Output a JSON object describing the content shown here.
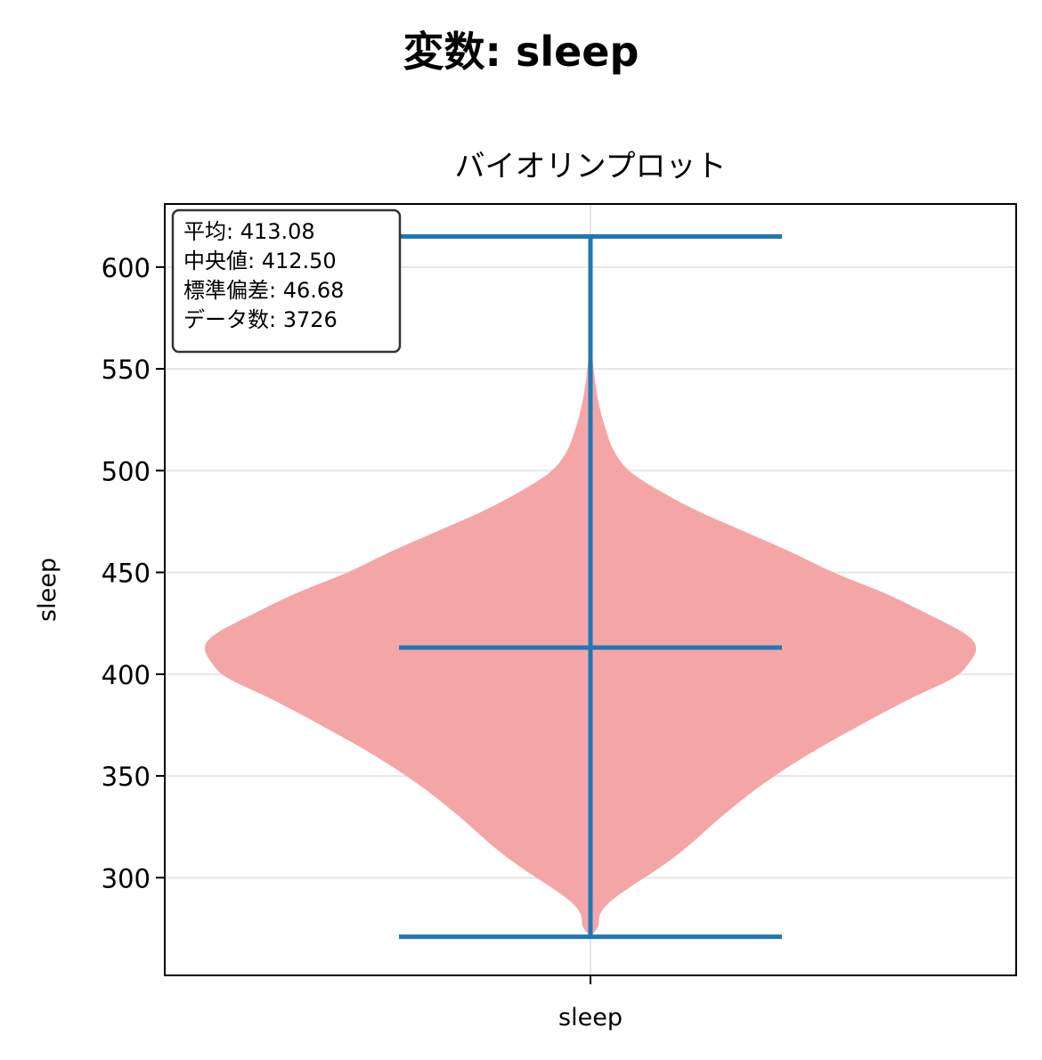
{
  "figure_title": "変数: sleep",
  "chart_data": {
    "type": "violin",
    "title": "バイオリンプロット",
    "xlabel": "",
    "ylabel": "sleep",
    "categories": [
      "sleep"
    ],
    "ylim": [
      252,
      631
    ],
    "yticks": [
      300,
      350,
      400,
      450,
      500,
      550,
      600
    ],
    "grid": true,
    "violin_color": "#f4a6a7",
    "line_color": "#1f77b4",
    "series": [
      {
        "name": "sleep",
        "min": 271,
        "max": 615,
        "mean": 413.08,
        "density": [
          [
            271,
            0.0
          ],
          [
            276,
            0.02
          ],
          [
            282,
            0.025
          ],
          [
            288,
            0.05
          ],
          [
            295,
            0.1
          ],
          [
            305,
            0.18
          ],
          [
            315,
            0.25
          ],
          [
            330,
            0.34
          ],
          [
            345,
            0.44
          ],
          [
            360,
            0.56
          ],
          [
            375,
            0.7
          ],
          [
            388,
            0.83
          ],
          [
            398,
            0.94
          ],
          [
            405,
            0.98
          ],
          [
            413,
            1.0
          ],
          [
            420,
            0.97
          ],
          [
            430,
            0.87
          ],
          [
            440,
            0.76
          ],
          [
            450,
            0.63
          ],
          [
            460,
            0.52
          ],
          [
            470,
            0.4
          ],
          [
            480,
            0.28
          ],
          [
            490,
            0.18
          ],
          [
            500,
            0.1
          ],
          [
            510,
            0.06
          ],
          [
            520,
            0.04
          ],
          [
            530,
            0.025
          ],
          [
            540,
            0.015
          ],
          [
            550,
            0.008
          ],
          [
            560,
            0.004
          ],
          [
            575,
            0.0
          ]
        ]
      }
    ]
  },
  "stats_box": {
    "lines": [
      "平均: 413.08",
      "中央値: 412.50",
      "標準偏差: 46.68",
      "データ数: 3726"
    ]
  }
}
